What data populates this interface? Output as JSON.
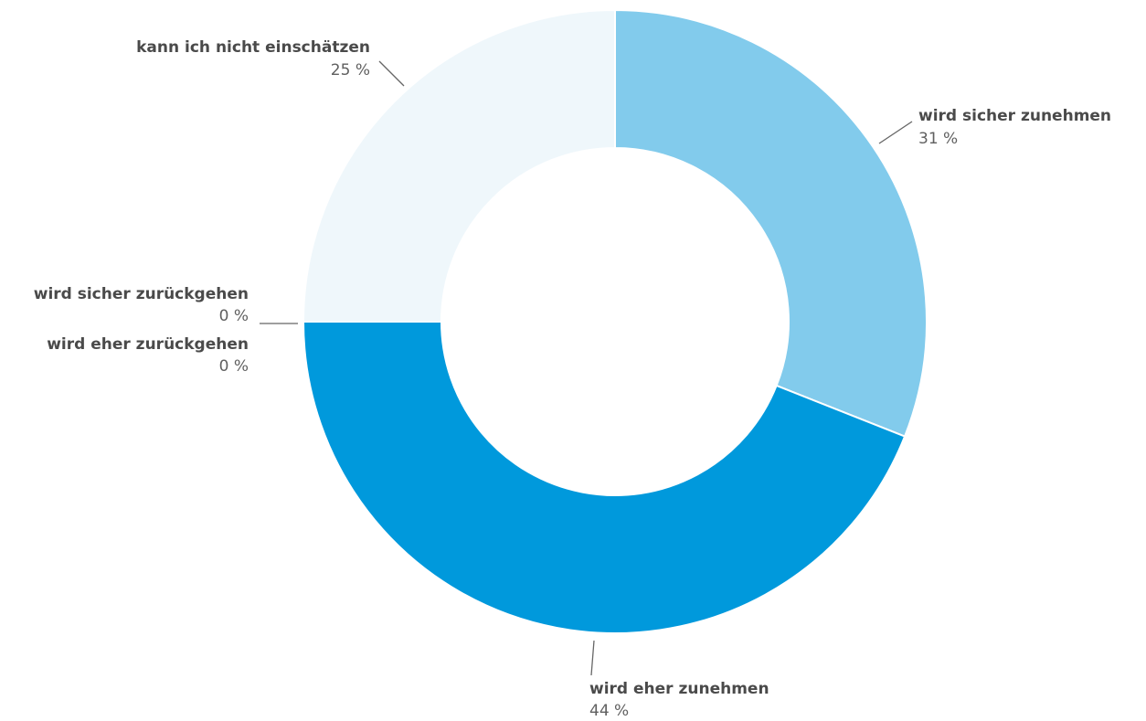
{
  "chart_data": {
    "type": "pie",
    "variant": "donut",
    "unit": "%",
    "slices": [
      {
        "label": "wird sicher zunehmen",
        "value": 31,
        "value_text": "31 %",
        "color": "#82cbec"
      },
      {
        "label": "wird eher zunehmen",
        "value": 44,
        "value_text": "44 %",
        "color": "#0099dc"
      },
      {
        "label": "wird eher zurückgehen",
        "value": 0,
        "value_text": "0 %",
        "color": "#0099dc"
      },
      {
        "label": "wird sicher zurückgehen",
        "value": 0,
        "value_text": "0 %",
        "color": "#82cbec"
      },
      {
        "label": "kann ich nicht einschätzen",
        "value": 25,
        "value_text": "25 %",
        "color": "#eff7fb"
      }
    ]
  }
}
